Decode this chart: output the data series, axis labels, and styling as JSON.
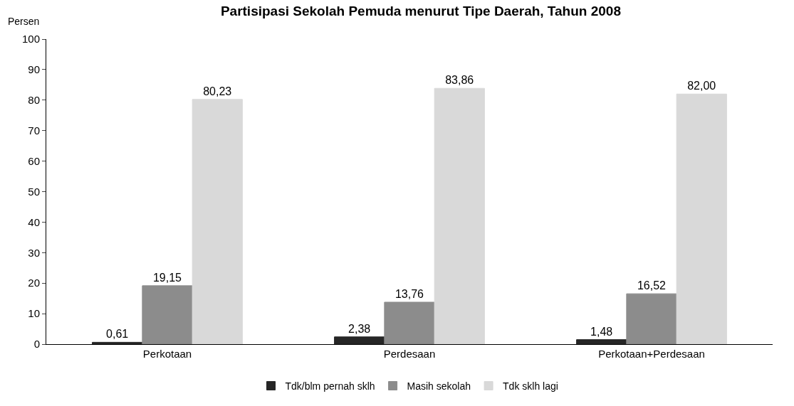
{
  "chart_data": {
    "type": "bar",
    "title": "Partisipasi Sekolah Pemuda menurut Tipe Daerah, Tahun 2008",
    "ylabel": "Persen",
    "categories": [
      "Perkotaan",
      "Perdesaan",
      "Perkotaan+Perdesaan"
    ],
    "series": [
      {
        "name": "Tdk/blm pernah sklh",
        "color": "#262626",
        "values": [
          0.61,
          2.38,
          1.48
        ],
        "value_labels": [
          "0,61",
          "2,38",
          "1,48"
        ]
      },
      {
        "name": "Masih sekolah",
        "color": "#8c8c8c",
        "values": [
          19.15,
          13.76,
          16.52
        ],
        "value_labels": [
          "19,15",
          "13,76",
          "16,52"
        ]
      },
      {
        "name": "Tdk sklh lagi",
        "color": "#d9d9d9",
        "values": [
          80.23,
          83.86,
          82.0
        ],
        "value_labels": [
          "80,23",
          "83,86",
          "82,00"
        ]
      }
    ],
    "ylim": [
      0,
      100
    ],
    "yticks": [
      0,
      10,
      20,
      30,
      40,
      50,
      60,
      70,
      80,
      90,
      100
    ],
    "grid": false,
    "legend": "bottom"
  }
}
